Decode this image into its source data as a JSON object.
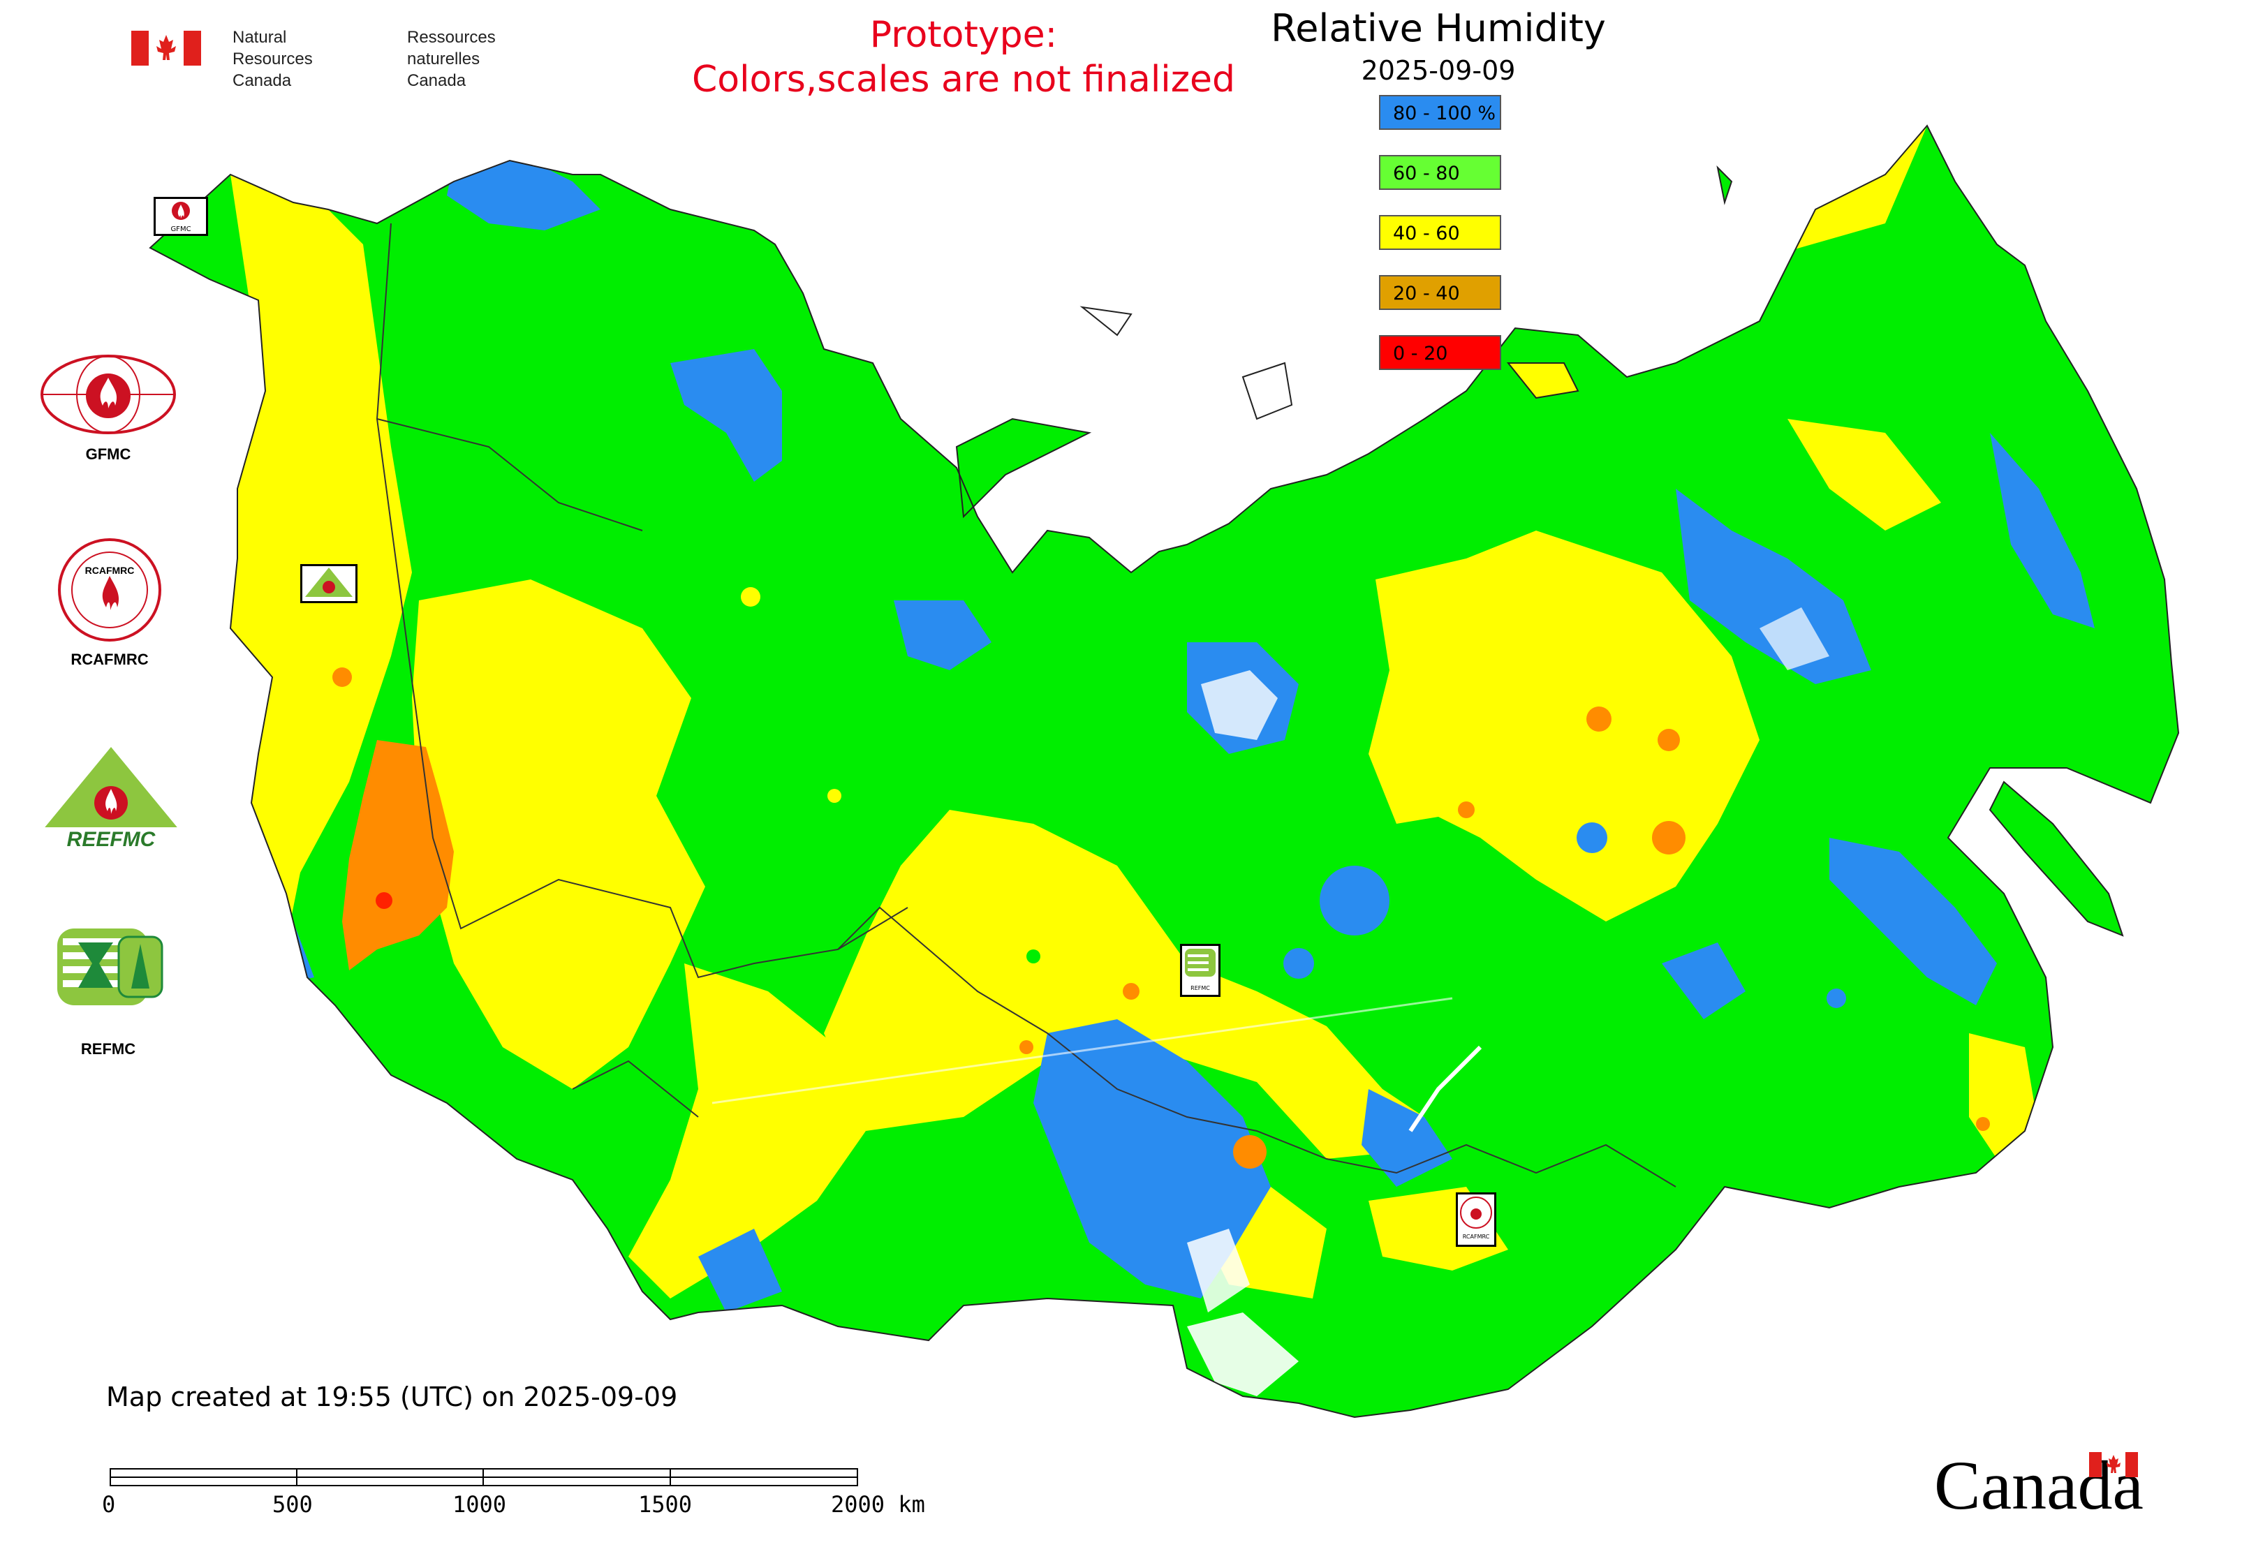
{
  "header": {
    "dept_en_1": "Natural Resources",
    "dept_en_2": "Canada",
    "dept_fr_1": "Ressources naturelles",
    "dept_fr_2": "Canada",
    "prototype_1": "Prototype:",
    "prototype_2": "Colors,scales are not finalized"
  },
  "legend": {
    "title": "Relative Humidity",
    "date": "2025-09-09",
    "classes": [
      {
        "label": "80 - 100 %",
        "color": "#2a8cf0"
      },
      {
        "label": "60 - 80",
        "color": "#66ff33"
      },
      {
        "label": "40 - 60",
        "color": "#ffff00"
      },
      {
        "label": "20 - 40",
        "color": "#e0a000"
      },
      {
        "label": "0 - 20",
        "color": "#ff0000"
      }
    ]
  },
  "map_colors": {
    "green": "#00ee00",
    "yellow": "#ffff00",
    "blue": "#2a8cf0",
    "orange": "#ff8c00",
    "red": "#ff2200"
  },
  "logos": {
    "gfmc": "GFMC",
    "rcafmrc": "RCAFMRC",
    "reefmc": "REEFMC",
    "refmc": "REFMC",
    "reefmc_word": "REEFMC",
    "rcafmrc_word": "RCAFMRC",
    "small_gfmc": "GFMC",
    "small_refmc": "REFMC",
    "small_rcafmrc": "RCAFMRC"
  },
  "footer": {
    "created": "Map created at 19:55 (UTC) on 2025-09-09",
    "scale_labels": [
      "0",
      "500",
      "1000",
      "1500",
      "2000 km"
    ],
    "wordmark": "Canada"
  }
}
